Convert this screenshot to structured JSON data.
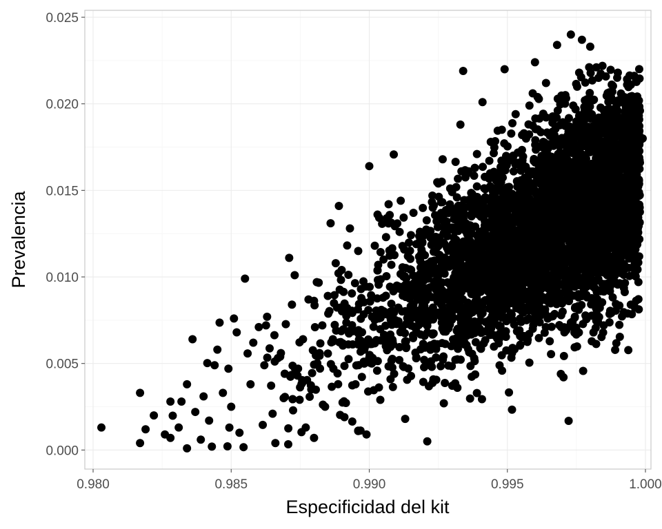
{
  "chart_data": {
    "type": "scatter",
    "title": "",
    "xlabel": "Especificidad del kit",
    "ylabel": "Prevalencia",
    "xlim": [
      0.9797,
      1.0002
    ],
    "ylim": [
      -0.0011,
      0.0254
    ],
    "x_ticks": [
      0.98,
      0.985,
      0.99,
      0.995,
      1.0
    ],
    "x_tick_labels": [
      "0.980",
      "0.985",
      "0.990",
      "0.995",
      "1.000"
    ],
    "y_ticks": [
      0.0,
      0.005,
      0.01,
      0.015,
      0.02,
      0.025
    ],
    "y_tick_labels": [
      "0.000",
      "0.005",
      "0.010",
      "0.015",
      "0.020",
      "0.025"
    ],
    "grid": true,
    "legend": "none",
    "theme_colors": {
      "point": "#000000",
      "grid_major": "#ebebeb",
      "grid_minor": "#f5f5f5",
      "panel_border": "#c8c8c8"
    },
    "points": [
      [
        0.9803,
        0.0013
      ],
      [
        0.9817,
        0.0033
      ],
      [
        0.9817,
        0.0004
      ],
      [
        0.9819,
        0.0012
      ],
      [
        0.9822,
        0.002
      ],
      [
        0.9826,
        0.0009
      ],
      [
        0.9828,
        0.0028
      ],
      [
        0.9828,
        0.0007
      ],
      [
        0.9831,
        0.0013
      ],
      [
        0.9832,
        0.0028
      ],
      [
        0.9834,
        0.0038
      ],
      [
        0.9834,
        0.0001
      ],
      [
        0.9836,
        0.0064
      ],
      [
        0.9837,
        0.0022
      ],
      [
        0.9839,
        0.0006
      ],
      [
        0.984,
        0.0031
      ],
      [
        0.9842,
        0.0017
      ],
      [
        0.9843,
        0.0002
      ],
      [
        0.9844,
        0.0049
      ],
      [
        0.9845,
        0.0058
      ],
      [
        0.9847,
        0.0033
      ],
      [
        0.9849,
        0.0047
      ],
      [
        0.985,
        0.0025
      ],
      [
        0.9851,
        0.0076
      ],
      [
        0.9852,
        0.0068
      ],
      [
        0.9853,
        0.001
      ],
      [
        0.9855,
        0.0099
      ],
      [
        0.9857,
        0.0038
      ],
      [
        0.9858,
        0.0062
      ],
      [
        0.986,
        0.0071
      ],
      [
        0.9862,
        0.0049
      ],
      [
        0.9863,
        0.0077
      ],
      [
        0.9865,
        0.0021
      ],
      [
        0.9866,
        0.0004
      ],
      [
        0.9868,
        0.0056
      ],
      [
        0.9869,
        0.003
      ],
      [
        0.9871,
        0.0111
      ],
      [
        0.9872,
        0.0084
      ],
      [
        0.9873,
        0.0101
      ],
      [
        0.9874,
        0.0043
      ],
      [
        0.9876,
        0.0064
      ],
      [
        0.9877,
        0.0013
      ],
      [
        0.9878,
        0.0087
      ],
      [
        0.9879,
        0.0035
      ],
      [
        0.988,
        0.0007
      ],
      [
        0.9881,
        0.0097
      ],
      [
        0.9882,
        0.0056
      ],
      [
        0.9883,
        0.0072
      ],
      [
        0.9884,
        0.0025
      ],
      [
        0.9885,
        0.0089
      ],
      [
        0.9886,
        0.0131
      ],
      [
        0.9887,
        0.0047
      ],
      [
        0.9888,
        0.0069
      ],
      [
        0.9889,
        0.0141
      ],
      [
        0.989,
        0.0104
      ],
      [
        0.9891,
        0.0019
      ],
      [
        0.9892,
        0.0082
      ],
      [
        0.9893,
        0.0128
      ],
      [
        0.9894,
        0.0061
      ],
      [
        0.9895,
        0.0038
      ],
      [
        0.9896,
        0.0115
      ],
      [
        0.9897,
        0.0093
      ],
      [
        0.9898,
        0.0051
      ],
      [
        0.9899,
        0.0009
      ],
      [
        0.99,
        0.0164
      ],
      [
        0.9901,
        0.0077
      ],
      [
        0.9902,
        0.0118
      ],
      [
        0.9903,
        0.0136
      ],
      [
        0.9904,
        0.0029
      ],
      [
        0.9905,
        0.0088
      ],
      [
        0.9906,
        0.006
      ],
      [
        0.9907,
        0.0142
      ],
      [
        0.9908,
        0.0107
      ],
      [
        0.9909,
        0.0044
      ],
      [
        0.991,
        0.0095
      ],
      [
        0.9911,
        0.0126
      ],
      [
        0.9912,
        0.0071
      ],
      [
        0.9913,
        0.0018
      ],
      [
        0.9914,
        0.0112
      ],
      [
        0.9915,
        0.0083
      ],
      [
        0.9916,
        0.0137
      ],
      [
        0.9917,
        0.0053
      ],
      [
        0.9918,
        0.0101
      ],
      [
        0.9919,
        0.0124
      ],
      [
        0.992,
        0.0066
      ],
      [
        0.9921,
        0.0005
      ],
      [
        0.9922,
        0.0094
      ],
      [
        0.9923,
        0.014
      ],
      [
        0.9924,
        0.0079
      ],
      [
        0.9925,
        0.0154
      ],
      [
        0.9926,
        0.0109
      ],
      [
        0.9927,
        0.0027
      ],
      [
        0.9928,
        0.0132
      ],
      [
        0.9929,
        0.0087
      ],
      [
        0.993,
        0.0149
      ],
      [
        0.9931,
        0.0118
      ],
      [
        0.9932,
        0.007
      ],
      [
        0.9933,
        0.0188
      ],
      [
        0.9934,
        0.0219
      ],
      [
        0.9935,
        0.0102
      ],
      [
        0.9936,
        0.0161
      ],
      [
        0.9937,
        0.0135
      ],
      [
        0.9938,
        0.0053
      ],
      [
        0.9939,
        0.0171
      ],
      [
        0.994,
        0.0112
      ],
      [
        0.9941,
        0.0201
      ],
      [
        0.9942,
        0.0146
      ],
      [
        0.9943,
        0.0087
      ],
      [
        0.9944,
        0.0178
      ],
      [
        0.9945,
        0.0124
      ],
      [
        0.9946,
        0.0157
      ],
      [
        0.9947,
        0.0064
      ],
      [
        0.9948,
        0.0185
      ],
      [
        0.9949,
        0.022
      ],
      [
        0.995,
        0.0139
      ],
      [
        0.9951,
        0.0102
      ],
      [
        0.9952,
        0.0168
      ],
      [
        0.9953,
        0.0194
      ],
      [
        0.9954,
        0.0127
      ],
      [
        0.9955,
        0.0074
      ],
      [
        0.9956,
        0.0183
      ],
      [
        0.9957,
        0.0152
      ],
      [
        0.9958,
        0.0199
      ],
      [
        0.9959,
        0.0117
      ],
      [
        0.996,
        0.0224
      ],
      [
        0.9961,
        0.0161
      ],
      [
        0.9962,
        0.0094
      ],
      [
        0.9963,
        0.0178
      ],
      [
        0.9964,
        0.0212
      ],
      [
        0.9965,
        0.0133
      ],
      [
        0.9966,
        0.0192
      ],
      [
        0.9967,
        0.0146
      ],
      [
        0.9968,
        0.0234
      ],
      [
        0.9969,
        0.0172
      ],
      [
        0.997,
        0.0113
      ],
      [
        0.9971,
        0.0205
      ],
      [
        0.9972,
        0.0159
      ],
      [
        0.9973,
        0.024
      ],
      [
        0.9974,
        0.0183
      ],
      [
        0.9975,
        0.0127
      ],
      [
        0.9976,
        0.0218
      ],
      [
        0.9977,
        0.0237
      ],
      [
        0.9978,
        0.0167
      ],
      [
        0.9979,
        0.02
      ],
      [
        0.998,
        0.0233
      ],
      [
        0.9981,
        0.0145
      ],
      [
        0.9982,
        0.0186
      ],
      [
        0.9983,
        0.0215
      ],
      [
        0.9984,
        0.0159
      ],
      [
        0.9985,
        0.0196
      ],
      [
        0.9986,
        0.0178
      ],
      [
        0.9987,
        0.0133
      ],
      [
        0.9988,
        0.0207
      ],
      [
        0.9989,
        0.0168
      ],
      [
        0.999,
        0.0218
      ],
      [
        0.9991,
        0.0187
      ],
      [
        0.9992,
        0.0142
      ],
      [
        0.9993,
        0.0202
      ],
      [
        0.9994,
        0.0174
      ],
      [
        0.9995,
        0.0191
      ],
      [
        0.9996,
        0.0155
      ],
      [
        0.9997,
        0.0189
      ],
      [
        0.9998,
        0.0166
      ],
      [
        0.9998,
        0.0196
      ],
      [
        0.9999,
        0.018
      ]
    ]
  }
}
